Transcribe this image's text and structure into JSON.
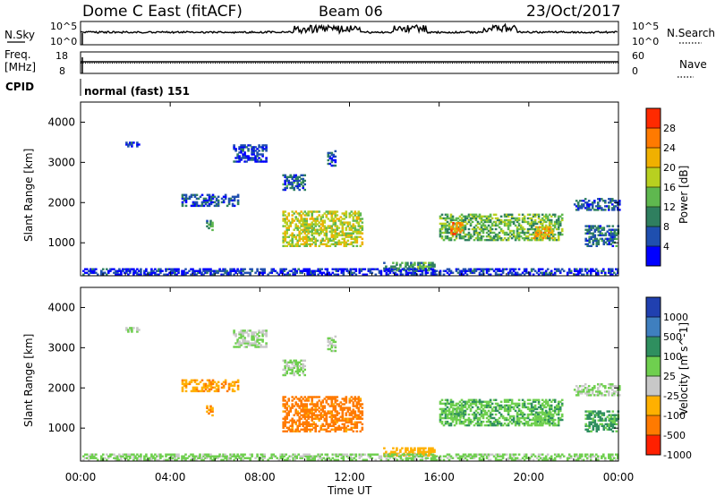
{
  "header": {
    "station": "Dome C East (fitACF)",
    "beam": "Beam 06",
    "date": "23/Oct/2017"
  },
  "param_panels": {
    "nsky_label": "N.Sky",
    "nsky_ticks": [
      "10^5",
      "10^0"
    ],
    "nsearch_label": "N.Search",
    "nsearch_ticks": [
      "10^5",
      "10^0"
    ],
    "freq_label": "Freq.",
    "freq_unit": "[MHz]",
    "freq_ticks": [
      "18",
      "8"
    ],
    "nave_label": "Nave",
    "nave_ticks": [
      "60",
      "0"
    ],
    "cpid_label": "CPID",
    "cpid_value": "normal (fast) 151"
  },
  "chart_data": [
    {
      "type": "heatmap",
      "name": "power",
      "ylabel": "Slant Range [km]",
      "ylim": [
        180,
        4500
      ],
      "yticks": [
        "4000",
        "3000",
        "2000",
        "1000"
      ],
      "colorbar": {
        "label": "Power [dB]",
        "ticks": [
          "28",
          "24",
          "20",
          "16",
          "12",
          "8",
          "4"
        ],
        "colors": [
          "#0000ff",
          "#1f4faf",
          "#2f7f5f",
          "#5fb84f",
          "#b8d020",
          "#f0b000",
          "#ff7a00",
          "#ff2a00"
        ]
      }
    },
    {
      "type": "heatmap",
      "name": "velocity",
      "ylabel": "Slant Range [km]",
      "ylim": [
        180,
        4500
      ],
      "yticks": [
        "4000",
        "3000",
        "2000",
        "1000"
      ],
      "colorbar": {
        "label": "Velocity [m s^-1]",
        "ticks": [
          "1000",
          "500",
          "100",
          "25",
          "-25",
          "-100",
          "-500",
          "-1000"
        ],
        "colors": [
          "#2040b0",
          "#3f7fbf",
          "#2f8f5f",
          "#6fcf4f",
          "#c8c8c8",
          "#ffb000",
          "#ff7a00",
          "#ff2000"
        ]
      }
    }
  ],
  "xaxis": {
    "label": "Time UT",
    "ticks": [
      "00:00",
      "04:00",
      "08:00",
      "12:00",
      "16:00",
      "20:00",
      "00:00"
    ]
  },
  "echo_regions": [
    {
      "t0": 2.0,
      "t1": 2.6,
      "r0": 3380,
      "r1": 3480,
      "p": 6,
      "v": 25
    },
    {
      "t0": 6.8,
      "t1": 8.3,
      "r0": 3000,
      "r1": 3450,
      "p": 6,
      "v": 25
    },
    {
      "t0": 4.5,
      "t1": 7.0,
      "r0": 1900,
      "r1": 2200,
      "p": 8,
      "v": -80
    },
    {
      "t0": 9.0,
      "t1": 10.0,
      "r0": 2300,
      "r1": 2700,
      "p": 10,
      "v": 25
    },
    {
      "t0": 9.0,
      "t1": 12.6,
      "r0": 900,
      "r1": 1800,
      "p": 20,
      "v": -200
    },
    {
      "t0": 5.6,
      "t1": 5.9,
      "r0": 1300,
      "r1": 1550,
      "p": 14,
      "v": -100
    },
    {
      "t0": 11.0,
      "t1": 11.4,
      "r0": 2900,
      "r1": 3300,
      "p": 8,
      "v": 25
    },
    {
      "t0": 13.5,
      "t1": 15.8,
      "r0": 300,
      "r1": 500,
      "p": 14,
      "v": -60
    },
    {
      "t0": 16.0,
      "t1": 21.5,
      "r0": 1050,
      "r1": 1700,
      "p": 16,
      "v": 80
    },
    {
      "t0": 16.5,
      "t1": 17.0,
      "r0": 1200,
      "r1": 1500,
      "p": 26,
      "v": 80
    },
    {
      "t0": 20.2,
      "t1": 21.0,
      "r0": 1100,
      "r1": 1400,
      "p": 24,
      "v": 80
    },
    {
      "t0": 22.0,
      "t1": 24.0,
      "r0": 1800,
      "r1": 2100,
      "p": 9,
      "v": 25
    },
    {
      "t0": 22.5,
      "t1": 24.0,
      "r0": 900,
      "r1": 1400,
      "p": 10,
      "v": 150
    },
    {
      "t0": 0.0,
      "t1": 24.0,
      "r0": 190,
      "r1": 350,
      "p": 6,
      "v": 40
    }
  ]
}
